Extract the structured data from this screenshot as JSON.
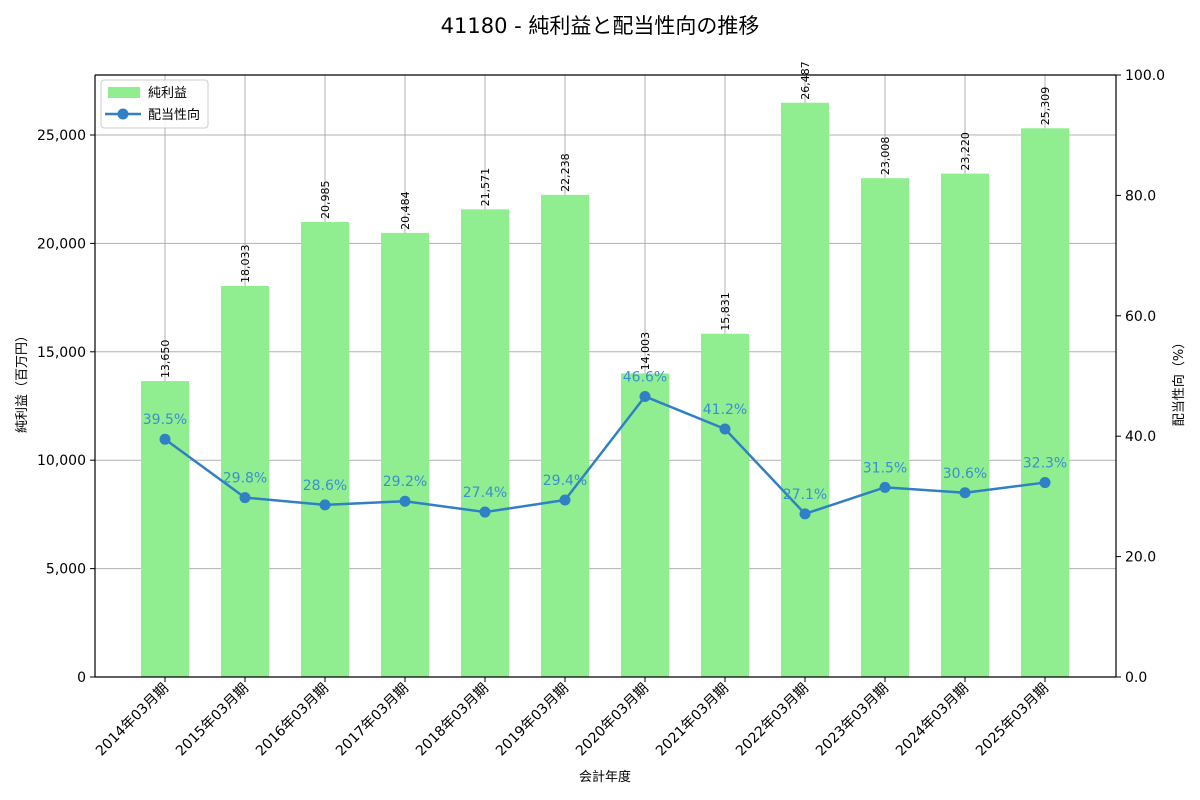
{
  "title": "41180 - 純利益と配当性向の推移",
  "colors": {
    "bar": "#90ee90",
    "line": "#2f80c4",
    "label": "#3a8fd0",
    "grid": "#b0b0b0"
  },
  "chart_data": {
    "type": "bar+line",
    "title": "41180 - 純利益と配当性向の推移",
    "xlabel": "会計年度",
    "ylabel": "純利益（百万円）",
    "y2label": "配当性向（%）",
    "ylim": [
      0,
      27767
    ],
    "y2lim": [
      0,
      100
    ],
    "yticks": [
      "0",
      "5,000",
      "10,000",
      "15,000",
      "20,000",
      "25,000"
    ],
    "y2ticks": [
      "0.0",
      "20.0",
      "40.0",
      "60.0",
      "80.0",
      "100.0"
    ],
    "grid": true,
    "legend_position": "upper left",
    "categories": [
      "2014年03月期",
      "2015年03月期",
      "2016年03月期",
      "2017年03月期",
      "2018年03月期",
      "2019年03月期",
      "2020年03月期",
      "2021年03月期",
      "2022年03月期",
      "2023年03月期",
      "2024年03月期",
      "2025年03月期"
    ],
    "series": [
      {
        "name": "純利益",
        "type": "bar",
        "axis": "left",
        "values": [
          13650,
          18033,
          20985,
          20484,
          21571,
          22238,
          14003,
          15831,
          26487,
          23008,
          23220,
          25309
        ],
        "labels": [
          "13,650",
          "18,033",
          "20,985",
          "20,484",
          "21,571",
          "22,238",
          "14,003",
          "15,831",
          "26,487",
          "23,008",
          "23,220",
          "25,309"
        ]
      },
      {
        "name": "配当性向",
        "type": "line",
        "axis": "right",
        "values": [
          39.5,
          29.8,
          28.6,
          29.2,
          27.4,
          29.4,
          46.6,
          41.2,
          27.1,
          31.5,
          30.6,
          32.3
        ],
        "labels": [
          "39.5%",
          "29.8%",
          "28.6%",
          "29.2%",
          "27.4%",
          "29.4%",
          "46.6%",
          "41.2%",
          "27.1%",
          "31.5%",
          "30.6%",
          "32.3%"
        ]
      }
    ]
  },
  "legend": {
    "bar_label": "純利益",
    "line_label": "配当性向"
  }
}
